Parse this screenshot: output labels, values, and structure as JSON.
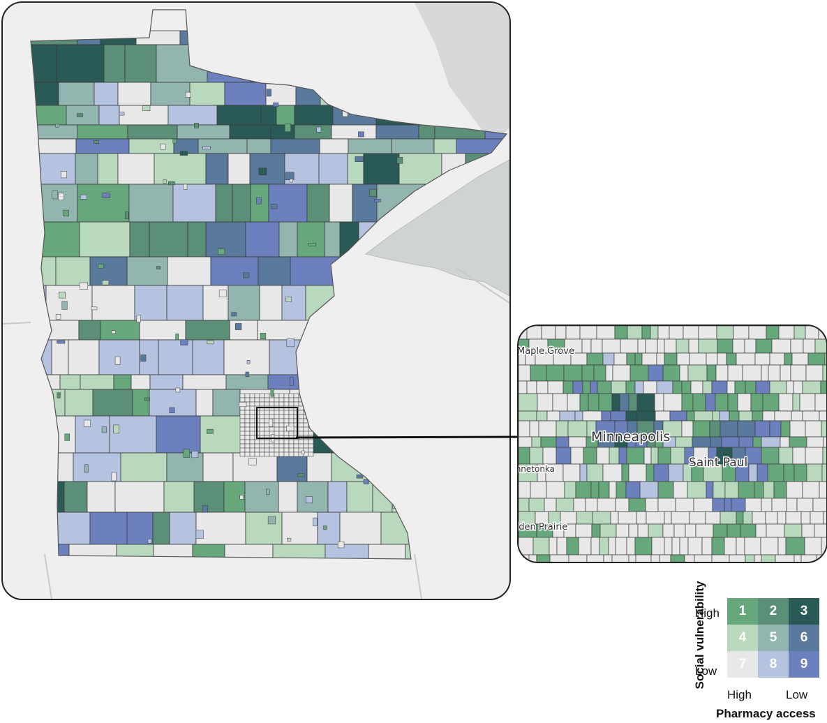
{
  "colors": {
    "c1": "#66a87c",
    "c2": "#5c8f78",
    "c3": "#2a5a55",
    "c4": "#b8d9bd",
    "c5": "#93b5b0",
    "c6": "#597a9d",
    "c7": "#e8e8e8",
    "c8": "#b5c2e0",
    "c9": "#6d80be",
    "background": "#efefef",
    "lake": "#cfd3d4"
  },
  "inset": {
    "labels": [
      "Maple Grove",
      "Minneapolis",
      "Saint Paul",
      "Minnetonka",
      "Eden Prairie"
    ]
  },
  "legend": {
    "y_axis_title": "Social vulnerability",
    "x_axis_title": "Pharmacy access",
    "row_high": "High",
    "row_low": "Low",
    "col_high": "High",
    "col_low": "Low",
    "cells": [
      "1",
      "2",
      "3",
      "4",
      "5",
      "6",
      "7",
      "8",
      "9"
    ]
  }
}
